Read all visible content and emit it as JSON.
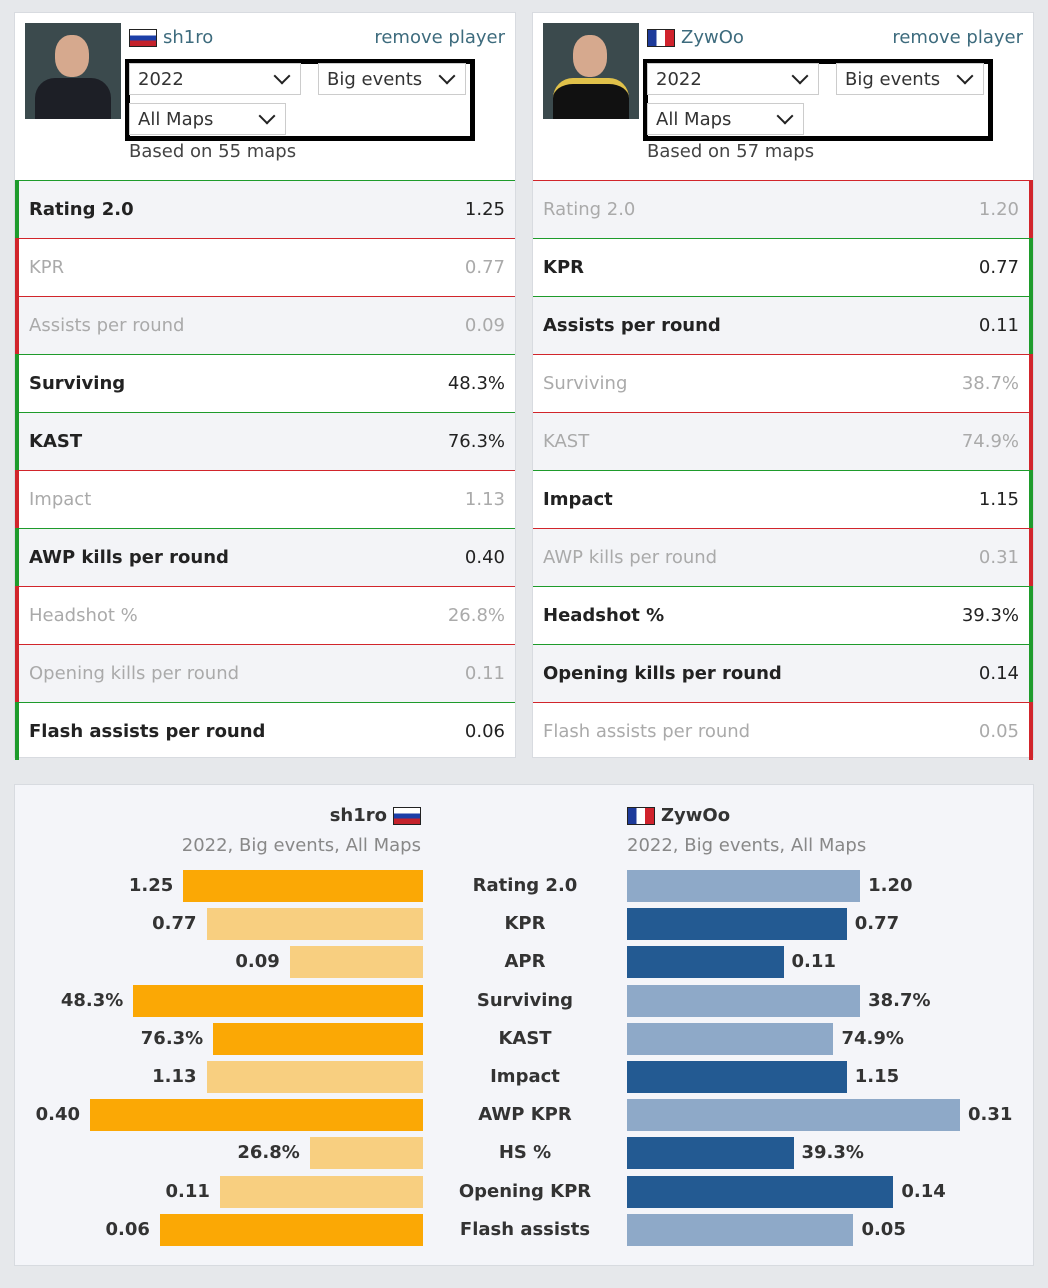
{
  "players": [
    {
      "name": "sh1ro",
      "flag": "ru",
      "remove_label": "remove player",
      "filters": {
        "year": "2022",
        "events": "Big events",
        "maps": "All Maps"
      },
      "based_on": "Based on 55 maps",
      "stats": [
        {
          "label": "Rating 2.0",
          "value": "1.25",
          "win": true
        },
        {
          "label": "KPR",
          "value": "0.77",
          "win": false
        },
        {
          "label": "Assists per round",
          "value": "0.09",
          "win": false
        },
        {
          "label": "Surviving",
          "value": "48.3%",
          "win": true
        },
        {
          "label": "KAST",
          "value": "76.3%",
          "win": true
        },
        {
          "label": "Impact",
          "value": "1.13",
          "win": false
        },
        {
          "label": "AWP kills per round",
          "value": "0.40",
          "win": true
        },
        {
          "label": "Headshot %",
          "value": "26.8%",
          "win": false
        },
        {
          "label": "Opening kills per round",
          "value": "0.11",
          "win": false
        },
        {
          "label": "Flash assists per round",
          "value": "0.06",
          "win": true
        }
      ]
    },
    {
      "name": "ZywOo",
      "flag": "fr",
      "remove_label": "remove player",
      "filters": {
        "year": "2022",
        "events": "Big events",
        "maps": "All Maps"
      },
      "based_on": "Based on 57 maps",
      "stats": [
        {
          "label": "Rating 2.0",
          "value": "1.20",
          "win": false
        },
        {
          "label": "KPR",
          "value": "0.77",
          "win": true
        },
        {
          "label": "Assists per round",
          "value": "0.11",
          "win": true
        },
        {
          "label": "Surviving",
          "value": "38.7%",
          "win": false
        },
        {
          "label": "KAST",
          "value": "74.9%",
          "win": false
        },
        {
          "label": "Impact",
          "value": "1.15",
          "win": true
        },
        {
          "label": "AWP kills per round",
          "value": "0.31",
          "win": false
        },
        {
          "label": "Headshot %",
          "value": "39.3%",
          "win": true
        },
        {
          "label": "Opening kills per round",
          "value": "0.14",
          "win": true
        },
        {
          "label": "Flash assists per round",
          "value": "0.05",
          "win": false
        }
      ]
    }
  ],
  "comparison": {
    "left": {
      "name": "sh1ro",
      "subtitle": "2022, Big events, All Maps"
    },
    "right": {
      "name": "ZywOo",
      "subtitle": "2022, Big events, All Maps"
    },
    "colors": {
      "left_strong": "#fba805",
      "left_weak": "#f8cf80",
      "right_strong": "#235a92",
      "right_weak": "#8ea9c8"
    },
    "rows": [
      {
        "label": "Rating 2.0",
        "left": "1.25",
        "right": "1.20",
        "left_fill": 0.72,
        "right_fill": 0.7,
        "left_win": true
      },
      {
        "label": "KPR",
        "left": "0.77",
        "right": "0.77",
        "left_fill": 0.65,
        "right_fill": 0.66,
        "left_win": false
      },
      {
        "label": "APR",
        "left": "0.09",
        "right": "0.11",
        "left_fill": 0.4,
        "right_fill": 0.47,
        "left_win": false
      },
      {
        "label": "Surviving",
        "left": "48.3%",
        "right": "38.7%",
        "left_fill": 0.87,
        "right_fill": 0.7,
        "left_win": true
      },
      {
        "label": "KAST",
        "left": "76.3%",
        "right": "74.9%",
        "left_fill": 0.63,
        "right_fill": 0.62,
        "left_win": true
      },
      {
        "label": "Impact",
        "left": "1.13",
        "right": "1.15",
        "left_fill": 0.65,
        "right_fill": 0.66,
        "left_win": false
      },
      {
        "label": "AWP KPR",
        "left": "0.40",
        "right": "0.31",
        "left_fill": 1.0,
        "right_fill": 1.0,
        "left_win": true
      },
      {
        "label": "HS %",
        "left": "26.8%",
        "right": "39.3%",
        "left_fill": 0.34,
        "right_fill": 0.5,
        "left_win": false
      },
      {
        "label": "Opening KPR",
        "left": "0.11",
        "right": "0.14",
        "left_fill": 0.61,
        "right_fill": 0.8,
        "left_win": false
      },
      {
        "label": "Flash assists",
        "left": "0.06",
        "right": "0.05",
        "left_fill": 0.79,
        "right_fill": 0.68,
        "left_win": true
      }
    ]
  }
}
